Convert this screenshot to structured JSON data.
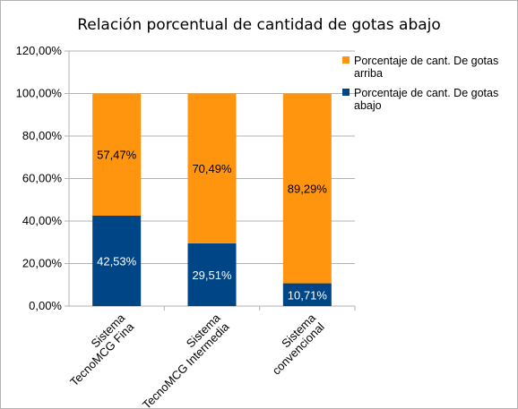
{
  "chart_data": {
    "type": "bar",
    "stacked": true,
    "title": "Relación porcentual de cantidad de gotas abajo",
    "xlabel": "",
    "ylabel": "",
    "categories": [
      [
        "Sistema",
        "TecnoMCG Fina"
      ],
      [
        "Sistema",
        "TecnoMCG Intermedia"
      ],
      [
        "Sistema",
        "convencional"
      ]
    ],
    "series": [
      {
        "name": "Porcentaje de cant. De gotas abajo",
        "color": "#004586",
        "values": [
          42.53,
          29.51,
          10.71
        ],
        "labels": [
          "42,53%",
          "29,51%",
          "10,71%"
        ],
        "label_color": "#ffffff"
      },
      {
        "name": "Porcentaje de cant. De gotas arriba",
        "color": "#ff950e",
        "values": [
          57.47,
          70.49,
          89.29
        ],
        "labels": [
          "57,47%",
          "70,49%",
          "89,29%"
        ],
        "label_color": "#000000"
      }
    ],
    "legend_order": [
      1,
      0
    ],
    "legend_lines": [
      [
        "Porcentaje de cant. De gotas",
        "arriba"
      ],
      [
        "Porcentaje de cant. De gotas",
        "abajo"
      ]
    ],
    "ylim": [
      0,
      120
    ],
    "yticks": [
      0,
      20,
      40,
      60,
      80,
      100,
      120
    ],
    "ytick_labels": [
      "0,00%",
      "20,00%",
      "40,00%",
      "60,00%",
      "80,00%",
      "100,00%",
      "120,00%"
    ],
    "grid": true,
    "legend_position": "right"
  }
}
